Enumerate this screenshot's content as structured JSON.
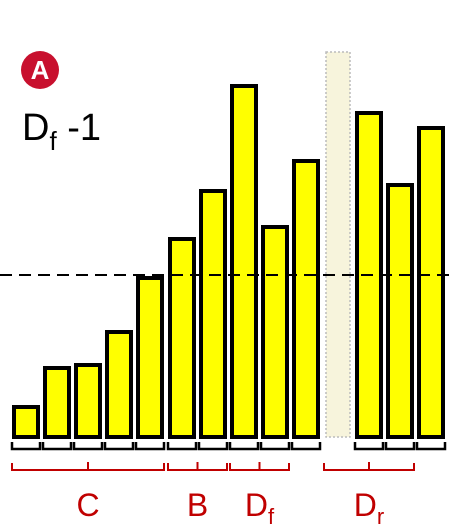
{
  "badge": {
    "letter": "A",
    "color": "#c8102e"
  },
  "title": {
    "main": "D",
    "sub": "f",
    "suffix": " -1"
  },
  "colors": {
    "bar_fill": "#ffff00",
    "bar_stroke": "#000000",
    "ghost_fill": "#f7f4dc",
    "bracket": "#c00000"
  },
  "chart_data": {
    "type": "bar",
    "values": [
      1.0,
      2.3,
      2.4,
      3.5,
      5.3,
      6.6,
      8.2,
      11.7,
      7.0,
      9.2,
      null,
      10.8,
      8.4,
      10.3
    ],
    "ghost_index": 10,
    "reference_line": 5.4,
    "groups": [
      {
        "label": "C",
        "sub": "",
        "start": 0,
        "end": 4
      },
      {
        "label": "B",
        "sub": "",
        "start": 5,
        "end": 6
      },
      {
        "label": "D",
        "sub": "f",
        "start": 7,
        "end": 8
      },
      {
        "label": "D",
        "sub": "r",
        "start": 10,
        "end": 12
      }
    ]
  }
}
